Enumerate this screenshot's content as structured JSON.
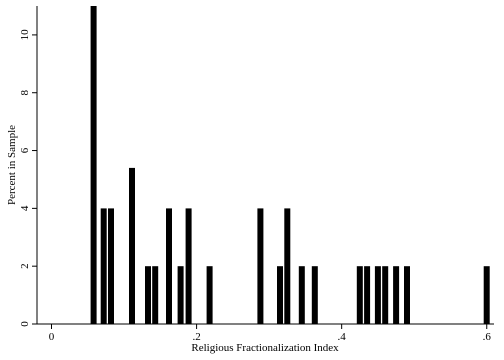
{
  "chart_data": {
    "type": "bar",
    "title": "",
    "xlabel": "Religious Fractionalization Index",
    "ylabel": "Percent in Sample",
    "xlim": [
      -0.02,
      0.61
    ],
    "ylim": [
      0,
      11
    ],
    "x_ticks": [
      0,
      0.2,
      0.4,
      0.6
    ],
    "x_tick_labels": [
      "0",
      ".2",
      ".4",
      ".6"
    ],
    "y_ticks": [
      0,
      2,
      4,
      6,
      8,
      10
    ],
    "y_tick_labels": [
      "0",
      "2",
      "4",
      "6",
      "8",
      "10"
    ],
    "grid": false,
    "bar_color": "#000000",
    "bars": [
      {
        "x": 0.058,
        "value": 11.0
      },
      {
        "x": 0.072,
        "value": 4.0
      },
      {
        "x": 0.082,
        "value": 4.0
      },
      {
        "x": 0.111,
        "value": 5.4
      },
      {
        "x": 0.111,
        "value": 2.0
      },
      {
        "x": 0.133,
        "value": 2.0
      },
      {
        "x": 0.143,
        "value": 2.0
      },
      {
        "x": 0.162,
        "value": 4.0
      },
      {
        "x": 0.178,
        "value": 2.0
      },
      {
        "x": 0.189,
        "value": 4.0
      },
      {
        "x": 0.218,
        "value": 2.0
      },
      {
        "x": 0.288,
        "value": 4.0
      },
      {
        "x": 0.315,
        "value": 2.0
      },
      {
        "x": 0.325,
        "value": 4.0
      },
      {
        "x": 0.345,
        "value": 2.0
      },
      {
        "x": 0.363,
        "value": 2.0
      },
      {
        "x": 0.425,
        "value": 2.0
      },
      {
        "x": 0.435,
        "value": 2.0
      },
      {
        "x": 0.45,
        "value": 2.0
      },
      {
        "x": 0.46,
        "value": 2.0
      },
      {
        "x": 0.475,
        "value": 2.0
      },
      {
        "x": 0.49,
        "value": 2.0
      },
      {
        "x": 0.6,
        "value": 2.0
      }
    ]
  }
}
